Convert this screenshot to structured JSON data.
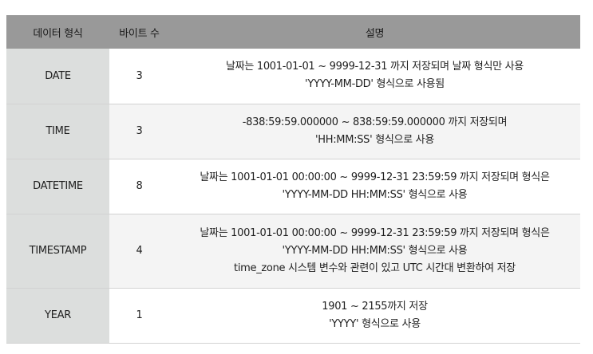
{
  "headers": {
    "type": "데이터 형식",
    "bytes": "바이트 수",
    "description": "설명"
  },
  "rows": [
    {
      "type": "DATE",
      "bytes": "3",
      "lines": [
        "날짜는 1001-01-01 ~ 9999-12-31 까지 저장되며 날짜 형식만 사용",
        "'YYYY-MM-DD' 형식으로 사용됨"
      ]
    },
    {
      "type": "TIME",
      "bytes": "3",
      "lines": [
        "-838:59:59.000000 ~ 838:59:59.000000 까지 저장되며",
        "'HH:MM:SS' 형식으로 사용"
      ]
    },
    {
      "type": "DATETIME",
      "bytes": "8",
      "lines": [
        "날짜는 1001-01-01 00:00:00 ~ 9999-12-31 23:59:59 까지 저장되며 형식은",
        "'YYYY-MM-DD HH:MM:SS' 형식으로 사용"
      ]
    },
    {
      "type": "TIMESTAMP",
      "bytes": "4",
      "lines": [
        "날짜는 1001-01-01 00:00:00 ~ 9999-12-31 23:59:59 까지 저장되며 형식은",
        "'YYYY-MM-DD HH:MM:SS' 형식으로 사용",
        "time_zone 시스템 변수와 관련이 있고 UTC 시간대 변환하여 저장"
      ]
    },
    {
      "type": "YEAR",
      "bytes": "1",
      "lines": [
        "1901 ~ 2155까지 저장",
        "'YYYY' 형식으로 사용"
      ]
    }
  ]
}
